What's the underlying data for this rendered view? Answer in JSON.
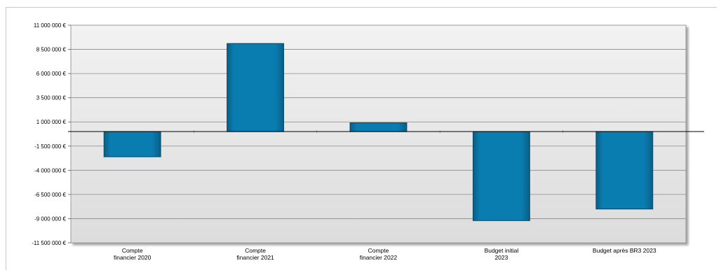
{
  "chart_data": {
    "type": "bar",
    "categories": [
      [
        "Compte",
        "financier 2020"
      ],
      [
        "Compte",
        "financier 2021"
      ],
      [
        "Compte",
        "financier 2022"
      ],
      [
        "Budget initial",
        "2023"
      ],
      [
        "Budget après BR3 2023"
      ]
    ],
    "values": [
      -2600000,
      9100000,
      900000,
      -9200000,
      -8000000
    ],
    "ylim": [
      -11500000,
      11000000
    ],
    "yticks": [
      11000000,
      8500000,
      6000000,
      3500000,
      1000000,
      -1500000,
      -4000000,
      -6500000,
      -9000000,
      -11500000
    ],
    "ytick_labels": [
      "11 000 000 €",
      "8 500 000 €",
      "6 000 000 €",
      "3 500 000 €",
      "1 000 000 €",
      "-1 500 000 €",
      "-4 000 000 €",
      "-6 500 000 €",
      "-9 000 000 €",
      "-11 500 000 €"
    ],
    "grid": true,
    "legend": "none",
    "colors": {
      "bar": "#0a7db0",
      "bar_edge": "#0b4f70",
      "plot_bg": "#e4e4e4",
      "grid": "#8a8a8a",
      "zero_line": "#000000"
    }
  }
}
